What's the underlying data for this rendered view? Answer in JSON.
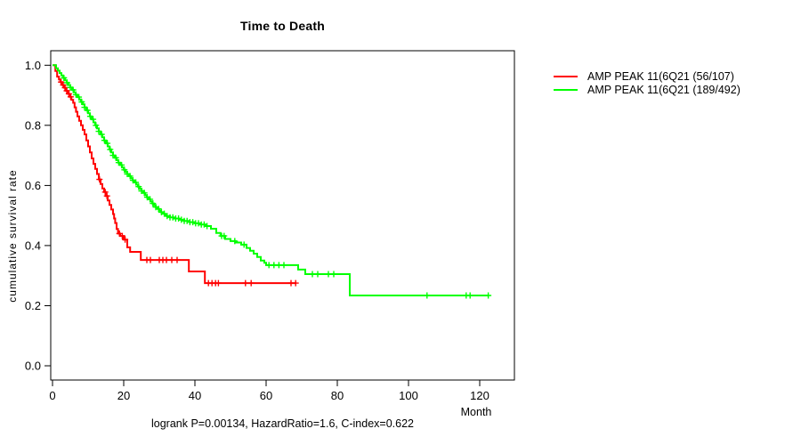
{
  "chart_data": {
    "type": "line",
    "subtype": "kaplan-meier-step",
    "title": "Time to Death",
    "xlabel": "Month",
    "ylabel": "cumulative survival rate",
    "footnote": "logrank P=0.00134, HazardRatio=1.6, C-index=0.622",
    "grid": false,
    "legend_position": "right-outside",
    "xlim": [
      0,
      130
    ],
    "ylim": [
      0.0,
      1.0
    ],
    "x_tick_values": [
      0,
      20,
      40,
      60,
      80,
      100,
      120
    ],
    "x_tick_labels": [
      "0",
      "20",
      "40",
      "60",
      "80",
      "100",
      "120"
    ],
    "y_tick_values": [
      0.0,
      0.2,
      0.4,
      0.6,
      0.8,
      1.0
    ],
    "y_tick_labels": [
      "0.0",
      "0.2",
      "0.4",
      "0.6",
      "0.8",
      "1.0"
    ],
    "series": [
      {
        "id": "red",
        "name": "AMP PEAK 11(6Q21 (56/107)",
        "color": "#ff0000",
        "steps": [
          [
            0,
            1.0
          ],
          [
            0.8,
            0.981
          ],
          [
            1.3,
            0.962
          ],
          [
            1.8,
            0.953
          ],
          [
            2.2,
            0.944
          ],
          [
            2.8,
            0.934
          ],
          [
            3.3,
            0.925
          ],
          [
            3.8,
            0.915
          ],
          [
            4.3,
            0.905
          ],
          [
            4.8,
            0.895
          ],
          [
            5.3,
            0.885
          ],
          [
            5.8,
            0.875
          ],
          [
            6.2,
            0.86
          ],
          [
            6.6,
            0.845
          ],
          [
            7,
            0.83
          ],
          [
            7.5,
            0.815
          ],
          [
            8,
            0.8
          ],
          [
            8.5,
            0.785
          ],
          [
            9,
            0.77
          ],
          [
            9.5,
            0.75
          ],
          [
            10,
            0.73
          ],
          [
            10.5,
            0.71
          ],
          [
            11,
            0.69
          ],
          [
            11.5,
            0.672
          ],
          [
            12,
            0.655
          ],
          [
            12.5,
            0.638
          ],
          [
            13,
            0.62
          ],
          [
            13.5,
            0.605
          ],
          [
            14,
            0.59
          ],
          [
            14.5,
            0.578
          ],
          [
            15,
            0.565
          ],
          [
            15.5,
            0.55
          ],
          [
            16,
            0.535
          ],
          [
            16.5,
            0.52
          ],
          [
            17,
            0.505
          ],
          [
            17.3,
            0.49
          ],
          [
            17.6,
            0.475
          ],
          [
            18,
            0.455
          ],
          [
            18.4,
            0.44
          ],
          [
            19,
            0.432
          ],
          [
            20,
            0.42
          ],
          [
            21,
            0.394
          ],
          [
            21.8,
            0.379
          ],
          [
            24.8,
            0.352
          ],
          [
            38.3,
            0.314
          ],
          [
            42.8,
            0.275
          ]
        ],
        "end_month": 68.5,
        "censor_months": [
          2.4,
          3.0,
          3.5,
          4.0,
          4.6,
          5.1,
          13.2,
          14.8,
          15.3,
          18.8,
          19.6,
          20.4,
          26.5,
          27.5,
          30.0,
          31.0,
          32.0,
          33.5,
          35.0,
          43.8,
          44.8,
          45.8,
          46.6,
          54.2,
          55.8,
          67.0,
          68.3
        ]
      },
      {
        "id": "green",
        "name": "AMP PEAK 11(6Q21 (189/492)",
        "color": "#00ff00",
        "steps": [
          [
            0,
            1.0
          ],
          [
            1,
            0.99
          ],
          [
            1.5,
            0.982
          ],
          [
            2,
            0.974
          ],
          [
            2.5,
            0.966
          ],
          [
            3,
            0.958
          ],
          [
            3.5,
            0.95
          ],
          [
            4,
            0.942
          ],
          [
            4.5,
            0.934
          ],
          [
            5,
            0.926
          ],
          [
            5.5,
            0.918
          ],
          [
            6,
            0.91
          ],
          [
            6.5,
            0.902
          ],
          [
            7,
            0.894
          ],
          [
            7.5,
            0.886
          ],
          [
            8,
            0.878
          ],
          [
            8.5,
            0.87
          ],
          [
            9,
            0.86
          ],
          [
            9.5,
            0.85
          ],
          [
            10,
            0.84
          ],
          [
            10.5,
            0.83
          ],
          [
            11,
            0.82
          ],
          [
            11.5,
            0.81
          ],
          [
            12,
            0.8
          ],
          [
            12.5,
            0.79
          ],
          [
            13,
            0.78
          ],
          [
            13.5,
            0.77
          ],
          [
            14,
            0.76
          ],
          [
            14.5,
            0.75
          ],
          [
            15,
            0.74
          ],
          [
            15.5,
            0.73
          ],
          [
            16,
            0.72
          ],
          [
            16.5,
            0.71
          ],
          [
            17,
            0.7
          ],
          [
            17.5,
            0.692
          ],
          [
            18,
            0.684
          ],
          [
            18.5,
            0.676
          ],
          [
            19,
            0.668
          ],
          [
            19.5,
            0.66
          ],
          [
            20,
            0.652
          ],
          [
            20.5,
            0.645
          ],
          [
            21,
            0.638
          ],
          [
            21.5,
            0.631
          ],
          [
            22,
            0.624
          ],
          [
            22.5,
            0.617
          ],
          [
            23,
            0.61
          ],
          [
            23.5,
            0.603
          ],
          [
            24,
            0.596
          ],
          [
            24.5,
            0.589
          ],
          [
            25,
            0.582
          ],
          [
            25.5,
            0.575
          ],
          [
            26,
            0.568
          ],
          [
            26.5,
            0.561
          ],
          [
            27,
            0.554
          ],
          [
            27.5,
            0.547
          ],
          [
            28,
            0.54
          ],
          [
            28.5,
            0.534
          ],
          [
            29,
            0.528
          ],
          [
            29.5,
            0.522
          ],
          [
            30,
            0.516
          ],
          [
            30.5,
            0.511
          ],
          [
            31,
            0.506
          ],
          [
            31.5,
            0.502
          ],
          [
            32,
            0.498
          ],
          [
            33,
            0.494
          ],
          [
            34,
            0.49
          ],
          [
            35.5,
            0.486
          ],
          [
            37,
            0.482
          ],
          [
            38.5,
            0.478
          ],
          [
            40,
            0.474
          ],
          [
            41.5,
            0.47
          ],
          [
            43,
            0.465
          ],
          [
            44.5,
            0.456
          ],
          [
            46,
            0.442
          ],
          [
            47.2,
            0.432
          ],
          [
            48.5,
            0.422
          ],
          [
            50,
            0.415
          ],
          [
            51.5,
            0.41
          ],
          [
            53,
            0.403
          ],
          [
            54.5,
            0.392
          ],
          [
            55.5,
            0.383
          ],
          [
            56.5,
            0.373
          ],
          [
            57.5,
            0.362
          ],
          [
            58.5,
            0.35
          ],
          [
            59.5,
            0.343
          ],
          [
            60,
            0.335
          ],
          [
            69,
            0.32
          ],
          [
            71,
            0.305
          ],
          [
            83.5,
            0.234
          ]
        ],
        "end_month": 122.6,
        "censor_months": [
          3.2,
          4.1,
          5.0,
          5.8,
          6.6,
          7.4,
          8.2,
          9.0,
          9.8,
          10.6,
          11.4,
          12.2,
          13.0,
          13.8,
          14.6,
          15.4,
          16.2,
          17.0,
          17.8,
          18.6,
          19.4,
          20.2,
          21.0,
          21.8,
          22.6,
          23.4,
          24.2,
          25.0,
          25.8,
          26.6,
          27.4,
          28.2,
          29.0,
          29.8,
          30.6,
          31.4,
          32.2,
          33.0,
          33.8,
          34.6,
          35.4,
          36.2,
          37.0,
          37.8,
          38.6,
          39.4,
          40.2,
          41.0,
          41.8,
          42.6,
          43.4,
          47.5,
          48.2,
          51.2,
          53.8,
          60.8,
          62.2,
          63.6,
          65.0,
          73.0,
          74.5,
          77.5,
          79.0,
          105.2,
          116.2,
          117.3,
          122.4
        ]
      }
    ]
  }
}
